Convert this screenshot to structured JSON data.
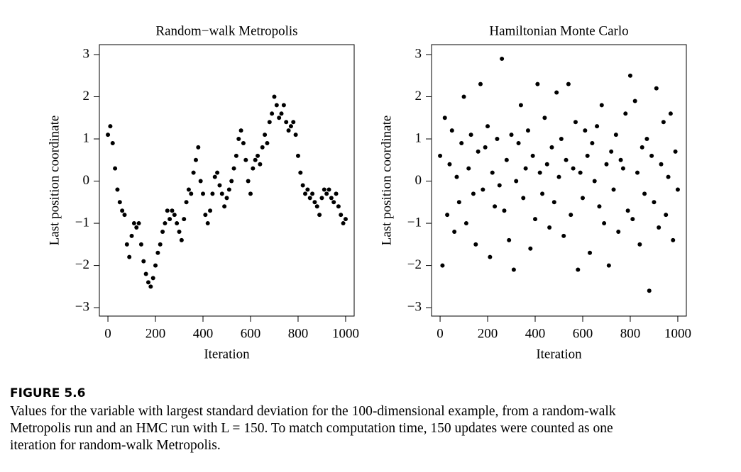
{
  "chart_data": [
    {
      "type": "scatter",
      "title": "Random−walk Metropolis",
      "x_label": "Iteration",
      "y_label": "Last position coordinate",
      "color": "#000000",
      "x": [
        0,
        10,
        20,
        30,
        40,
        50,
        60,
        70,
        80,
        90,
        100,
        110,
        120,
        130,
        140,
        150,
        160,
        170,
        180,
        190,
        200,
        210,
        220,
        230,
        240,
        250,
        260,
        270,
        280,
        290,
        300,
        310,
        320,
        330,
        340,
        350,
        360,
        370,
        380,
        390,
        400,
        410,
        420,
        430,
        440,
        450,
        460,
        470,
        480,
        490,
        500,
        510,
        520,
        530,
        540,
        550,
        560,
        570,
        580,
        590,
        600,
        610,
        620,
        630,
        640,
        650,
        660,
        670,
        680,
        690,
        700,
        710,
        720,
        730,
        740,
        750,
        760,
        770,
        780,
        790,
        800,
        810,
        820,
        830,
        840,
        850,
        860,
        870,
        880,
        890,
        900,
        910,
        920,
        930,
        940,
        950,
        960,
        970,
        980,
        990,
        1000
      ],
      "values": [
        1.1,
        1.3,
        0.9,
        0.3,
        -0.2,
        -0.5,
        -0.7,
        -0.8,
        -1.5,
        -1.8,
        -1.3,
        -1.0,
        -1.1,
        -1.0,
        -1.5,
        -1.9,
        -2.2,
        -2.4,
        -2.5,
        -2.3,
        -2.0,
        -1.7,
        -1.5,
        -1.2,
        -1.0,
        -0.7,
        -0.9,
        -0.7,
        -0.8,
        -1.0,
        -1.2,
        -1.4,
        -0.9,
        -0.5,
        -0.2,
        -0.3,
        0.2,
        0.5,
        0.8,
        0.0,
        -0.3,
        -0.8,
        -1.0,
        -0.7,
        -0.3,
        0.1,
        0.2,
        -0.1,
        -0.3,
        -0.6,
        -0.4,
        -0.2,
        0.0,
        0.3,
        0.6,
        1.0,
        1.2,
        0.9,
        0.5,
        0.0,
        -0.3,
        0.3,
        0.5,
        0.6,
        0.4,
        0.8,
        1.1,
        0.9,
        1.4,
        1.6,
        2.0,
        1.8,
        1.5,
        1.6,
        1.8,
        1.4,
        1.2,
        1.3,
        1.4,
        1.1,
        0.6,
        0.2,
        -0.1,
        -0.3,
        -0.2,
        -0.4,
        -0.3,
        -0.5,
        -0.6,
        -0.8,
        -0.4,
        -0.2,
        -0.3,
        -0.2,
        -0.4,
        -0.5,
        -0.3,
        -0.6,
        -0.8,
        -1.0,
        -0.9
      ],
      "xlim": [
        -36,
        1036
      ],
      "ylim": [
        -3.2,
        3.235
      ],
      "xticks": [
        0,
        200,
        400,
        600,
        800,
        1000
      ],
      "yticks": [
        {
          "value": -3,
          "label": "−3"
        },
        {
          "value": -2,
          "label": "−2"
        },
        {
          "value": -1,
          "label": "−1"
        },
        0,
        1,
        2,
        3
      ]
    },
    {
      "type": "scatter",
      "title": "Hamiltonian Monte Carlo",
      "x_label": "Iteration",
      "y_label": "Last position coordinate",
      "color": "#000000",
      "x": [
        0,
        10,
        20,
        30,
        40,
        50,
        60,
        70,
        80,
        90,
        100,
        110,
        120,
        130,
        140,
        150,
        160,
        170,
        180,
        190,
        200,
        210,
        220,
        230,
        240,
        250,
        260,
        270,
        280,
        290,
        300,
        310,
        320,
        330,
        340,
        350,
        360,
        370,
        380,
        390,
        400,
        410,
        420,
        430,
        440,
        450,
        460,
        470,
        480,
        490,
        500,
        510,
        520,
        530,
        540,
        550,
        560,
        570,
        580,
        590,
        600,
        610,
        620,
        630,
        640,
        650,
        660,
        670,
        680,
        690,
        700,
        710,
        720,
        730,
        740,
        750,
        760,
        770,
        780,
        790,
        800,
        810,
        820,
        830,
        840,
        850,
        860,
        870,
        880,
        890,
        900,
        910,
        920,
        930,
        940,
        950,
        960,
        970,
        980,
        990,
        1000
      ],
      "values": [
        0.6,
        -2.0,
        1.5,
        -0.8,
        0.4,
        1.2,
        -1.2,
        0.1,
        -0.5,
        0.9,
        2.0,
        -1.0,
        0.3,
        1.1,
        -0.3,
        -1.5,
        0.7,
        2.3,
        -0.2,
        0.8,
        1.3,
        -1.8,
        0.2,
        -0.6,
        1.0,
        -0.1,
        2.9,
        -0.7,
        0.5,
        -1.4,
        1.1,
        -2.1,
        0.0,
        0.9,
        1.8,
        -0.4,
        0.3,
        1.2,
        -1.6,
        0.6,
        -0.9,
        2.3,
        0.2,
        -0.3,
        1.5,
        0.4,
        -1.1,
        0.8,
        -0.5,
        2.1,
        0.1,
        1.0,
        -1.3,
        0.5,
        2.3,
        -0.8,
        0.3,
        1.4,
        -2.1,
        0.2,
        -0.4,
        1.2,
        0.6,
        -1.7,
        0.9,
        0.0,
        1.3,
        -0.6,
        1.8,
        -1.0,
        0.4,
        -2.0,
        0.7,
        -0.2,
        1.1,
        -1.2,
        0.5,
        0.3,
        1.6,
        -0.7,
        2.5,
        -0.9,
        1.9,
        0.2,
        -1.5,
        0.8,
        -0.3,
        1.0,
        -2.6,
        0.6,
        -0.5,
        2.2,
        -1.1,
        0.4,
        1.4,
        -0.8,
        0.1,
        1.6,
        -1.4,
        0.7,
        -0.2
      ],
      "xlim": [
        -36,
        1036
      ],
      "ylim": [
        -3.2,
        3.235
      ],
      "xticks": [
        0,
        200,
        400,
        600,
        800,
        1000
      ],
      "yticks": [
        {
          "value": -3,
          "label": "−3"
        },
        {
          "value": -2,
          "label": "−2"
        },
        {
          "value": -1,
          "label": "−1"
        },
        0,
        1,
        2,
        3
      ]
    }
  ],
  "figure_caption": {
    "label": "FIGURE 5.6",
    "lines": [
      "Values for the variable with largest standard deviation for the 100-dimensional example, from a random-walk",
      "Metropolis run and an HMC run with L = 150. To match computation time, 150 updates were counted as one",
      "iteration for random-walk Metropolis."
    ]
  }
}
